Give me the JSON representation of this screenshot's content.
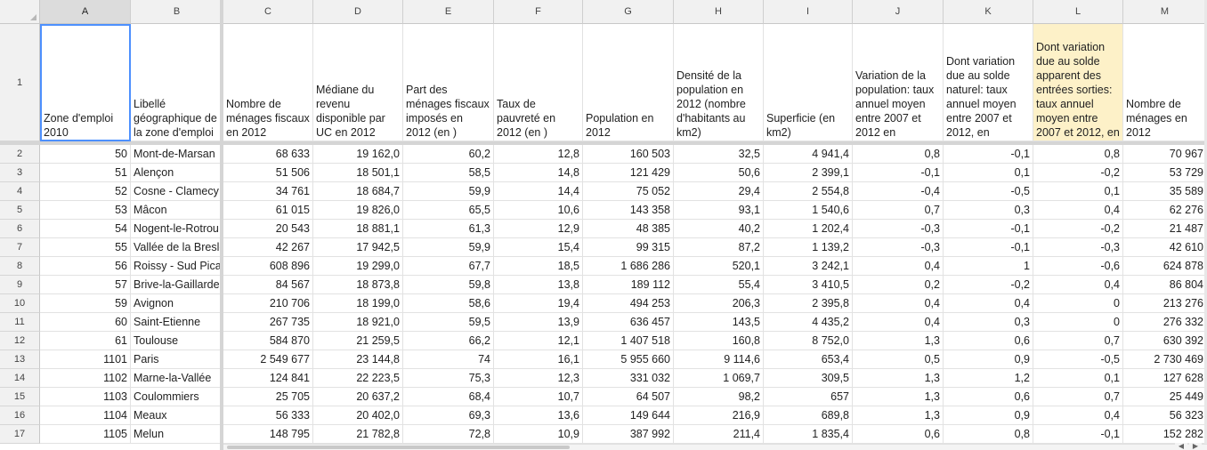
{
  "columns": [
    "A",
    "B",
    "C",
    "D",
    "E",
    "F",
    "G",
    "H",
    "I",
    "J",
    "K",
    "L",
    "M"
  ],
  "selected_column": "A",
  "header_row_number": "1",
  "headers": [
    "Zone d'emploi 2010",
    "Libellé géographique de la zone d'emploi",
    "Nombre de ménages fiscaux en 2012",
    "Médiane du revenu disponible par UC en 2012",
    "Part des ménages fiscaux imposés en 2012 (en )",
    "Taux de pauvreté en 2012 (en )",
    "Population en 2012",
    "Densité de la population en 2012 (nombre d'habitants au km2)",
    "Superficie (en km2)",
    "Variation de la population: taux annuel moyen entre 2007 et 2012 en",
    "Dont variation due au solde naturel: taux annuel moyen entre 2007 et 2012, en",
    "Dont variation due au solde apparent des entrées sorties: taux annuel moyen entre 2007 et 2012, en",
    "Nombre de ménages en 2012"
  ],
  "highlight_color": "#fdf1c8",
  "selection_color": "#4d90fe",
  "rows": [
    {
      "n": "2",
      "c": [
        "50",
        "Mont-de-Marsan",
        "68 633",
        "19 162,0",
        "60,2",
        "12,8",
        "160 503",
        "32,5",
        "4 941,4",
        "0,8",
        "-0,1",
        "0,8",
        "70 967"
      ]
    },
    {
      "n": "3",
      "c": [
        "51",
        "Alençon",
        "51 506",
        "18 501,1",
        "58,5",
        "14,8",
        "121 429",
        "50,6",
        "2 399,1",
        "-0,1",
        "0,1",
        "-0,2",
        "53 729"
      ]
    },
    {
      "n": "4",
      "c": [
        "52",
        "Cosne - Clamecy",
        "34 761",
        "18 684,7",
        "59,9",
        "14,4",
        "75 052",
        "29,4",
        "2 554,8",
        "-0,4",
        "-0,5",
        "0,1",
        "35 589"
      ]
    },
    {
      "n": "5",
      "c": [
        "53",
        "Mâcon",
        "61 015",
        "19 826,0",
        "65,5",
        "10,6",
        "143 358",
        "93,1",
        "1 540,6",
        "0,7",
        "0,3",
        "0,4",
        "62 276"
      ]
    },
    {
      "n": "6",
      "c": [
        "54",
        "Nogent-le-Rotrou",
        "20 543",
        "18 881,1",
        "61,3",
        "12,9",
        "48 385",
        "40,2",
        "1 202,4",
        "-0,3",
        "-0,1",
        "-0,2",
        "21 487"
      ]
    },
    {
      "n": "7",
      "c": [
        "55",
        "Vallée de la Bresle",
        "42 267",
        "17 942,5",
        "59,9",
        "15,4",
        "99 315",
        "87,2",
        "1 139,2",
        "-0,3",
        "-0,1",
        "-0,3",
        "42 610"
      ]
    },
    {
      "n": "8",
      "c": [
        "56",
        "Roissy - Sud Picardie",
        "608 896",
        "19 299,0",
        "67,7",
        "18,5",
        "1 686 286",
        "520,1",
        "3 242,1",
        "0,4",
        "1",
        "-0,6",
        "624 878"
      ]
    },
    {
      "n": "9",
      "c": [
        "57",
        "Brive-la-Gaillarde",
        "84 567",
        "18 873,8",
        "59,8",
        "13,8",
        "189 112",
        "55,4",
        "3 410,5",
        "0,2",
        "-0,2",
        "0,4",
        "86 804"
      ]
    },
    {
      "n": "10",
      "c": [
        "59",
        "Avignon",
        "210 706",
        "18 199,0",
        "58,6",
        "19,4",
        "494 253",
        "206,3",
        "2 395,8",
        "0,4",
        "0,4",
        "0",
        "213 276"
      ]
    },
    {
      "n": "11",
      "c": [
        "60",
        "Saint-Etienne",
        "267 735",
        "18 921,0",
        "59,5",
        "13,9",
        "636 457",
        "143,5",
        "4 435,2",
        "0,4",
        "0,3",
        "0",
        "276 332"
      ]
    },
    {
      "n": "12",
      "c": [
        "61",
        "Toulouse",
        "584 870",
        "21 259,5",
        "66,2",
        "12,1",
        "1 407 518",
        "160,8",
        "8 752,0",
        "1,3",
        "0,6",
        "0,7",
        "630 392"
      ]
    },
    {
      "n": "13",
      "c": [
        "1101",
        "Paris",
        "2 549 677",
        "23 144,8",
        "74",
        "16,1",
        "5 955 660",
        "9 114,6",
        "653,4",
        "0,5",
        "0,9",
        "-0,5",
        "2 730 469"
      ]
    },
    {
      "n": "14",
      "c": [
        "1102",
        "Marne-la-Vallée",
        "124 841",
        "22 223,5",
        "75,3",
        "12,3",
        "331 032",
        "1 069,7",
        "309,5",
        "1,3",
        "1,2",
        "0,1",
        "127 628"
      ]
    },
    {
      "n": "15",
      "c": [
        "1103",
        "Coulommiers",
        "25 705",
        "20 637,2",
        "68,4",
        "10,7",
        "64 507",
        "98,2",
        "657",
        "1,3",
        "0,6",
        "0,7",
        "25 449"
      ]
    },
    {
      "n": "16",
      "c": [
        "1104",
        "Meaux",
        "56 333",
        "20 402,0",
        "69,3",
        "13,6",
        "149 644",
        "216,9",
        "689,8",
        "1,3",
        "0,9",
        "0,4",
        "56 323"
      ]
    },
    {
      "n": "17",
      "c": [
        "1105",
        "Melun",
        "148 795",
        "21 782,8",
        "72,8",
        "10,9",
        "387 992",
        "211,4",
        "1 835,4",
        "0,6",
        "0,8",
        "-0,1",
        "152 282"
      ]
    }
  ]
}
